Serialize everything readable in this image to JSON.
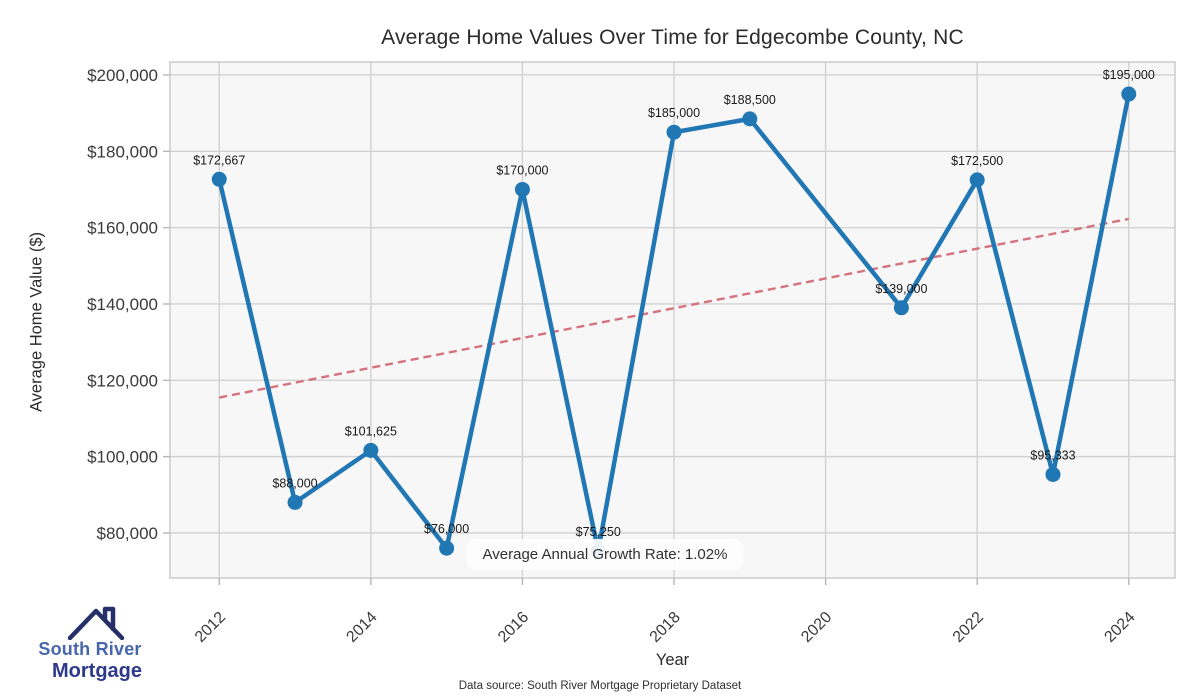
{
  "header": {
    "title": "Average Home Values Over Time for Edgecombe County, NC"
  },
  "chart_data": {
    "type": "line",
    "title": "Average Home Values Over Time for Edgecombe County, NC",
    "xlabel": "Year",
    "ylabel": "Average Home Value ($)",
    "x": [
      2012,
      2013,
      2014,
      2015,
      2016,
      2017,
      2018,
      2019,
      2021,
      2022,
      2023,
      2024
    ],
    "values": [
      172667,
      88000,
      101625,
      76000,
      170000,
      75250,
      185000,
      188500,
      139000,
      172500,
      95333,
      195000
    ],
    "point_labels": [
      "$172,667",
      "$88,000",
      "$101,625",
      "$76,000",
      "$170,000",
      "$75,250",
      "$185,000",
      "$188,500",
      "$139,000",
      "$172,500",
      "$95,333",
      "$195,000"
    ],
    "x_ticks": [
      {
        "value": 2012,
        "label": "2012"
      },
      {
        "value": 2014,
        "label": "2014"
      },
      {
        "value": 2016,
        "label": "2016"
      },
      {
        "value": 2018,
        "label": "2018"
      },
      {
        "value": 2020,
        "label": "2020"
      },
      {
        "value": 2022,
        "label": "2022"
      },
      {
        "value": 2024,
        "label": "2024"
      }
    ],
    "y_ticks": [
      {
        "value": 200000,
        "label": "$200,000"
      },
      {
        "value": 180000,
        "label": "$180,000"
      },
      {
        "value": 160000,
        "label": "$160,000"
      },
      {
        "value": 140000,
        "label": "$140,000"
      },
      {
        "value": 120000,
        "label": "$120,000"
      },
      {
        "value": 100000,
        "label": "$100,000"
      },
      {
        "value": 80000,
        "label": "$80,000"
      }
    ],
    "xlim": [
      2011.35,
      2024.61
    ],
    "ylim": [
      68200,
      203400
    ],
    "grid": true,
    "legend": false,
    "trendline": {
      "dashed": true,
      "points": [
        {
          "x": 2012,
          "y": 115487
        },
        {
          "x": 2024,
          "y": 162293
        }
      ]
    },
    "annotation": "Average Annual Growth Rate: 1.02%"
  },
  "footer": {
    "source": "Data source: South River Mortgage Proprietary Dataset"
  },
  "logo": {
    "line1": "South River",
    "line2": "Mortgage"
  },
  "colors": {
    "series_line": "#2177b4",
    "trend_line": "#d4737e",
    "plot_background": "#f7f7f7",
    "grid_line": "#d2d2d2",
    "spine": "#c9c9c9",
    "tick_label": "#3a3a3a",
    "data_label": "#1a1a1a",
    "logo_primary": "#4766ac",
    "logo_secondary": "#2d3a8c",
    "logo_roof": "#272f68"
  }
}
